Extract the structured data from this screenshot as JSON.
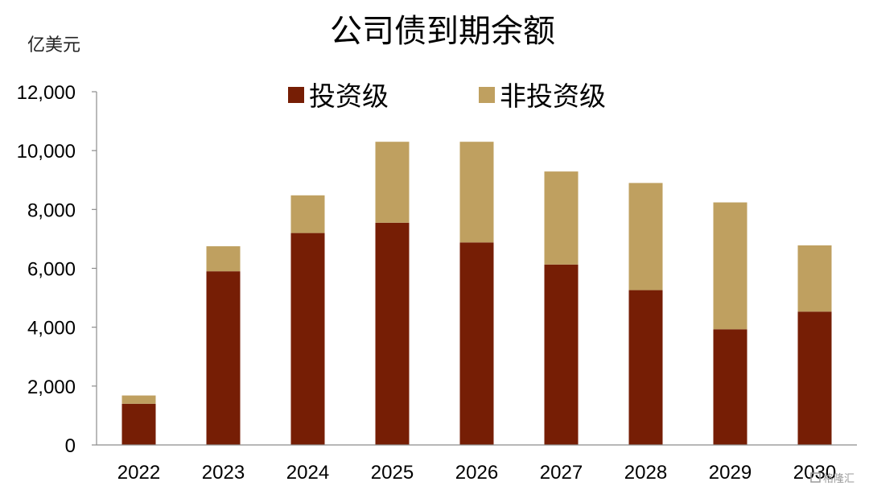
{
  "chart_data": {
    "type": "bar",
    "stacked": true,
    "title": "公司债到期余额",
    "ylabel": "亿美元",
    "xlabel": "",
    "categories": [
      "2022",
      "2023",
      "2024",
      "2025",
      "2026",
      "2027",
      "2028",
      "2029",
      "2030"
    ],
    "series": [
      {
        "name": "投资级",
        "color": "#761E05",
        "values": [
          1400,
          5900,
          7200,
          7550,
          6880,
          6130,
          5260,
          3930,
          4530
        ]
      },
      {
        "name": "非投资级",
        "color": "#BFA060",
        "values": [
          280,
          850,
          1280,
          2750,
          3420,
          3160,
          3640,
          4310,
          2250
        ]
      }
    ],
    "ylim": [
      0,
      12000
    ],
    "yticks": [
      "0",
      "2,000",
      "4,000",
      "6,000",
      "8,000",
      "10,000",
      "12,000"
    ],
    "ytick_values": [
      0,
      2000,
      4000,
      6000,
      8000,
      10000,
      12000
    ],
    "grid": false,
    "legend_position": "top"
  },
  "watermark": "格隆汇"
}
